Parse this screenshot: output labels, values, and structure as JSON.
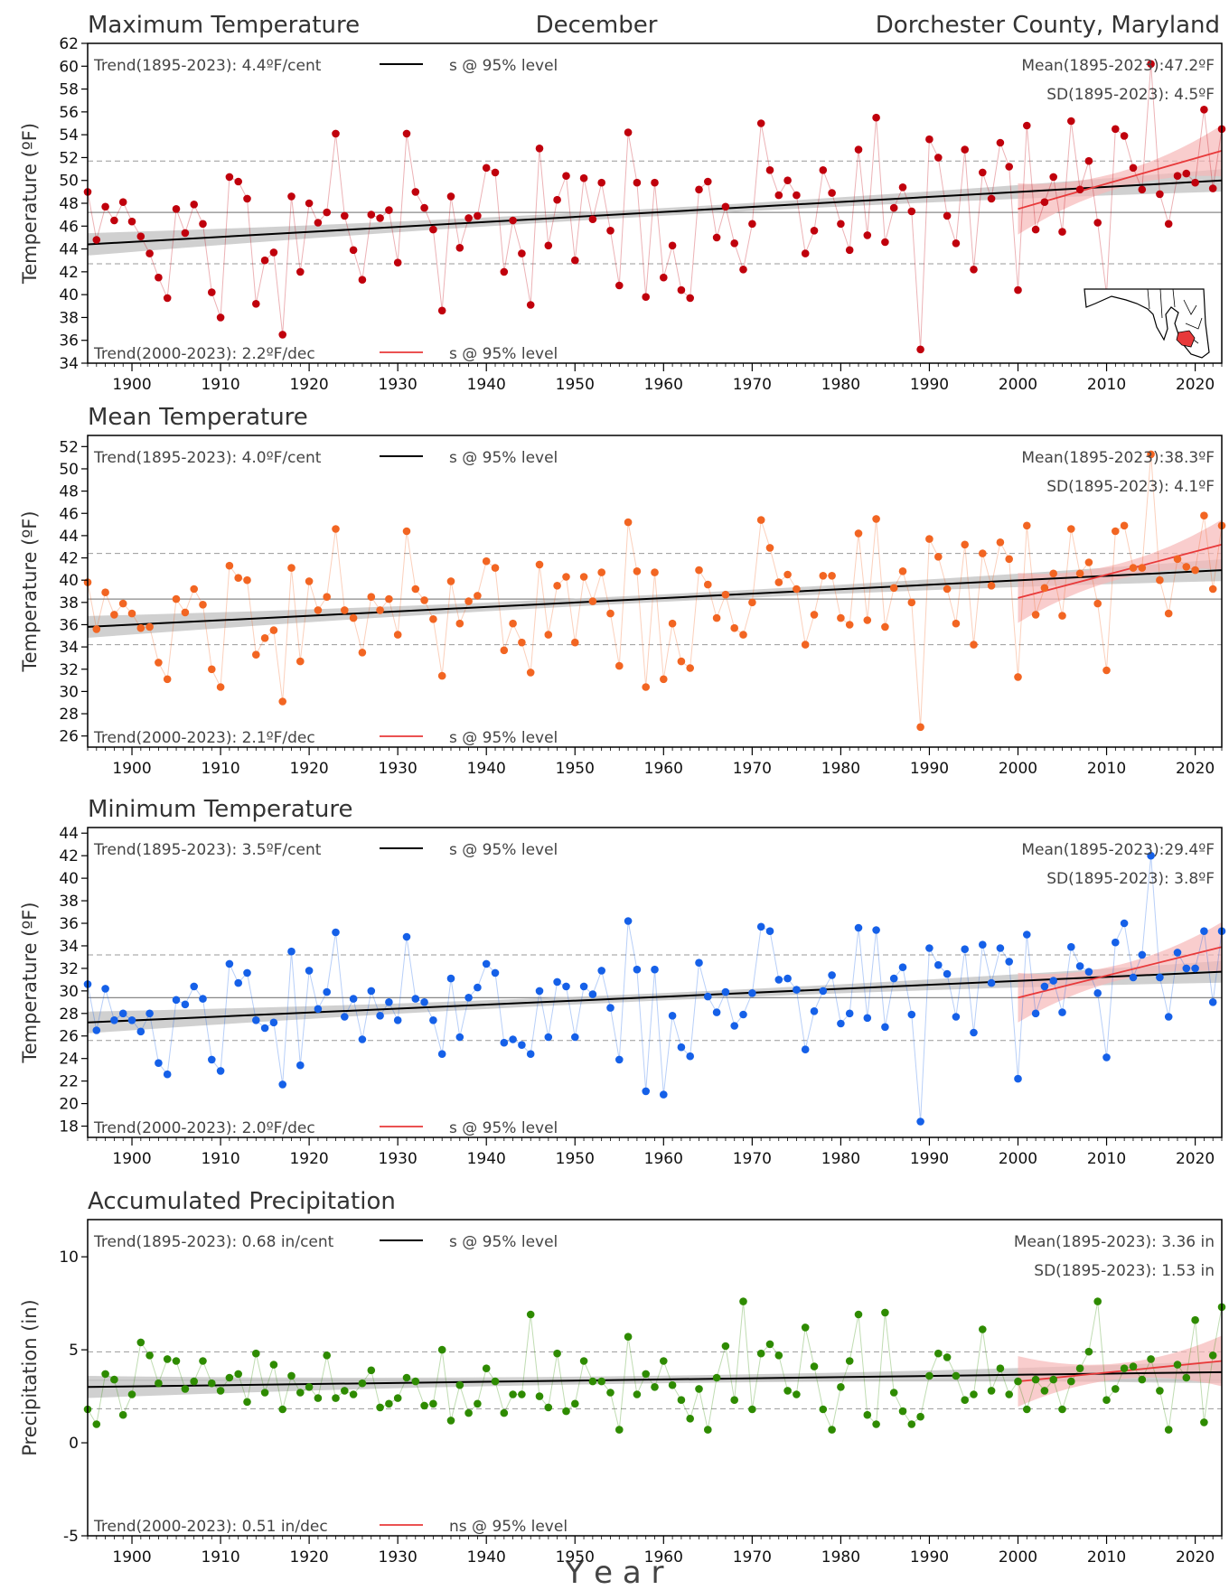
{
  "header": {
    "title_left": "Maximum Temperature",
    "title_center": "December",
    "title_right": "Dorchester County, Maryland"
  },
  "xaxis": {
    "label": "Y e a r",
    "range": [
      1895,
      2023
    ],
    "ticks": [
      1900,
      1910,
      1920,
      1930,
      1940,
      1950,
      1960,
      1970,
      1980,
      1990,
      2000,
      2010,
      2020
    ]
  },
  "map_icon": "maryland-county-locator-map",
  "colors": {
    "max": "#c0000c",
    "mean": "#f26522",
    "min": "#1560e8",
    "precip": "#2e8b00",
    "trend_long": "#000000",
    "trend_recent": "#e8393a",
    "band_long": "#c8c8c8",
    "band_recent": "#f7b8b8"
  },
  "chart_data": [
    {
      "type": "line",
      "id": "max",
      "title": "Maximum Temperature",
      "ylabel": "Temperature (ºF)",
      "ylim": [
        34,
        62
      ],
      "yticks": [
        34,
        36,
        38,
        40,
        42,
        44,
        46,
        48,
        50,
        52,
        54,
        56,
        58,
        60,
        62
      ],
      "trend_long_text": "Trend(1895-2023):  4.4ºF/cent",
      "trend_long_sig": "s @ 95% level",
      "trend_recent_text": "Trend(2000-2023):  2.2ºF/dec",
      "trend_recent_sig": "s @ 95% level",
      "mean_text": "Mean(1895-2023):47.2ºF",
      "sd_text": "SD(1895-2023): 4.5ºF",
      "mean": 47.2,
      "sd": 4.5,
      "trend_long_line": [
        [
          1895,
          44.4
        ],
        [
          2023,
          50.0
        ]
      ],
      "trend_recent_line": [
        [
          2000,
          47.5
        ],
        [
          2023,
          52.6
        ]
      ],
      "x": [
        1895,
        1896,
        1897,
        1898,
        1899,
        1900,
        1901,
        1902,
        1903,
        1904,
        1905,
        1906,
        1907,
        1908,
        1909,
        1910,
        1911,
        1912,
        1913,
        1914,
        1915,
        1916,
        1917,
        1918,
        1919,
        1920,
        1921,
        1922,
        1923,
        1924,
        1925,
        1926,
        1927,
        1928,
        1929,
        1930,
        1931,
        1932,
        1933,
        1934,
        1935,
        1936,
        1937,
        1938,
        1939,
        1940,
        1941,
        1942,
        1943,
        1944,
        1945,
        1946,
        1947,
        1948,
        1949,
        1950,
        1951,
        1952,
        1953,
        1954,
        1955,
        1956,
        1957,
        1958,
        1959,
        1960,
        1961,
        1962,
        1963,
        1964,
        1965,
        1966,
        1967,
        1968,
        1969,
        1970,
        1971,
        1972,
        1973,
        1974,
        1975,
        1976,
        1977,
        1978,
        1979,
        1980,
        1981,
        1982,
        1983,
        1984,
        1985,
        1986,
        1987,
        1988,
        1989,
        1990,
        1991,
        1992,
        1993,
        1994,
        1995,
        1996,
        1997,
        1998,
        1999,
        2000,
        2001,
        2002,
        2003,
        2004,
        2005,
        2006,
        2007,
        2008,
        2009,
        2010,
        2011,
        2012,
        2013,
        2014,
        2015,
        2016,
        2017,
        2018,
        2019,
        2020,
        2021,
        2022,
        2023
      ],
      "values": [
        49.0,
        44.8,
        47.7,
        46.5,
        48.1,
        46.4,
        45.1,
        43.6,
        41.5,
        39.7,
        47.5,
        45.4,
        47.9,
        46.2,
        40.2,
        38.0,
        50.3,
        49.9,
        48.4,
        39.2,
        43.0,
        43.7,
        36.5,
        48.6,
        42.0,
        48.0,
        46.3,
        47.2,
        54.1,
        46.9,
        43.9,
        41.3,
        47.0,
        46.7,
        47.4,
        42.8,
        54.1,
        49.0,
        47.6,
        45.7,
        38.6,
        48.6,
        44.1,
        46.7,
        46.9,
        51.1,
        50.7,
        42.0,
        46.5,
        43.6,
        39.1,
        52.8,
        44.3,
        48.3,
        50.4,
        43.0,
        50.2,
        46.6,
        49.8,
        45.6,
        40.8,
        54.2,
        49.8,
        39.8,
        49.8,
        41.5,
        44.3,
        40.4,
        39.7,
        49.2,
        49.9,
        45.0,
        47.7,
        44.5,
        42.2,
        46.2,
        55.0,
        50.9,
        48.7,
        50.0,
        48.7,
        43.6,
        45.6,
        50.9,
        48.9,
        46.2,
        43.9,
        52.7,
        45.2,
        55.5,
        44.6,
        47.6,
        49.4,
        47.3,
        35.2,
        53.6,
        52.0,
        46.9,
        44.5,
        52.7,
        42.2,
        50.7,
        48.4,
        53.3,
        51.2,
        40.4,
        54.8,
        45.7,
        48.1,
        50.3,
        45.5,
        55.2,
        49.2,
        51.7,
        46.3,
        40.0,
        54.5,
        53.9,
        51.1,
        49.2,
        60.2,
        48.8,
        46.2,
        50.4,
        50.6,
        49.8,
        56.2,
        49.3,
        54.5
      ]
    },
    {
      "type": "line",
      "id": "mean",
      "title": "Mean Temperature",
      "ylabel": "Temperature (ºF)",
      "ylim": [
        25,
        53
      ],
      "yticks": [
        26,
        28,
        30,
        32,
        34,
        36,
        38,
        40,
        42,
        44,
        46,
        48,
        50,
        52
      ],
      "trend_long_text": "Trend(1895-2023):  4.0ºF/cent",
      "trend_long_sig": "s @ 95% level",
      "trend_recent_text": "Trend(2000-2023):  2.1ºF/dec",
      "trend_recent_sig": "s @ 95% level",
      "mean_text": "Mean(1895-2023):38.3ºF",
      "sd_text": "SD(1895-2023): 4.1ºF",
      "mean": 38.3,
      "sd": 4.1,
      "trend_long_line": [
        [
          1895,
          35.8
        ],
        [
          2023,
          40.9
        ]
      ],
      "trend_recent_line": [
        [
          2000,
          38.4
        ],
        [
          2023,
          43.2
        ]
      ],
      "x": [
        1895,
        1896,
        1897,
        1898,
        1899,
        1900,
        1901,
        1902,
        1903,
        1904,
        1905,
        1906,
        1907,
        1908,
        1909,
        1910,
        1911,
        1912,
        1913,
        1914,
        1915,
        1916,
        1917,
        1918,
        1919,
        1920,
        1921,
        1922,
        1923,
        1924,
        1925,
        1926,
        1927,
        1928,
        1929,
        1930,
        1931,
        1932,
        1933,
        1934,
        1935,
        1936,
        1937,
        1938,
        1939,
        1940,
        1941,
        1942,
        1943,
        1944,
        1945,
        1946,
        1947,
        1948,
        1949,
        1950,
        1951,
        1952,
        1953,
        1954,
        1955,
        1956,
        1957,
        1958,
        1959,
        1960,
        1961,
        1962,
        1963,
        1964,
        1965,
        1966,
        1967,
        1968,
        1969,
        1970,
        1971,
        1972,
        1973,
        1974,
        1975,
        1976,
        1977,
        1978,
        1979,
        1980,
        1981,
        1982,
        1983,
        1984,
        1985,
        1986,
        1987,
        1988,
        1989,
        1990,
        1991,
        1992,
        1993,
        1994,
        1995,
        1996,
        1997,
        1998,
        1999,
        2000,
        2001,
        2002,
        2003,
        2004,
        2005,
        2006,
        2007,
        2008,
        2009,
        2010,
        2011,
        2012,
        2013,
        2014,
        2015,
        2016,
        2017,
        2018,
        2019,
        2020,
        2021,
        2022,
        2023
      ],
      "values": [
        39.8,
        35.6,
        38.9,
        36.9,
        37.9,
        37.0,
        35.7,
        35.8,
        32.6,
        31.1,
        38.3,
        37.1,
        39.2,
        37.8,
        32.0,
        30.4,
        41.3,
        40.2,
        40.0,
        33.3,
        34.8,
        35.5,
        29.1,
        41.1,
        32.7,
        39.9,
        37.3,
        38.5,
        44.6,
        37.3,
        36.6,
        33.5,
        38.5,
        37.3,
        38.3,
        35.1,
        44.4,
        39.2,
        38.2,
        36.5,
        31.4,
        39.9,
        36.1,
        38.1,
        38.6,
        41.7,
        41.1,
        33.7,
        36.1,
        34.4,
        31.7,
        41.4,
        35.1,
        39.5,
        40.3,
        34.4,
        40.3,
        38.1,
        40.7,
        37.0,
        32.3,
        45.2,
        40.8,
        30.4,
        40.7,
        31.1,
        36.1,
        32.7,
        32.1,
        40.9,
        39.6,
        36.6,
        38.7,
        35.7,
        35.1,
        38.0,
        45.4,
        42.9,
        39.8,
        40.5,
        39.2,
        34.2,
        36.9,
        40.4,
        40.4,
        36.6,
        36.0,
        44.2,
        36.4,
        45.5,
        35.8,
        39.3,
        40.8,
        38.0,
        26.8,
        43.7,
        42.1,
        39.2,
        36.1,
        43.2,
        34.2,
        42.4,
        39.5,
        43.4,
        41.9,
        31.3,
        44.9,
        36.9,
        39.3,
        40.6,
        36.8,
        44.6,
        40.6,
        41.6,
        37.9,
        31.9,
        44.4,
        44.9,
        41.1,
        41.1,
        51.3,
        40.0,
        37.0,
        41.9,
        41.2,
        40.9,
        45.8,
        39.2,
        44.9
      ]
    },
    {
      "type": "line",
      "id": "min",
      "title": "Minimum Temperature",
      "ylabel": "Temperature (ºF)",
      "ylim": [
        17,
        44.5
      ],
      "yticks": [
        18,
        20,
        22,
        24,
        26,
        28,
        30,
        32,
        34,
        36,
        38,
        40,
        42,
        44
      ],
      "trend_long_text": "Trend(1895-2023):  3.5ºF/cent",
      "trend_long_sig": "s @ 95% level",
      "trend_recent_text": "Trend(2000-2023):  2.0ºF/dec",
      "trend_recent_sig": "s @ 95% level",
      "mean_text": "Mean(1895-2023):29.4ºF",
      "sd_text": "SD(1895-2023): 3.8ºF",
      "mean": 29.4,
      "sd": 3.8,
      "trend_long_line": [
        [
          1895,
          27.2
        ],
        [
          2023,
          31.7
        ]
      ],
      "trend_recent_line": [
        [
          2000,
          29.4
        ],
        [
          2023,
          33.9
        ]
      ],
      "x": [
        1895,
        1896,
        1897,
        1898,
        1899,
        1900,
        1901,
        1902,
        1903,
        1904,
        1905,
        1906,
        1907,
        1908,
        1909,
        1910,
        1911,
        1912,
        1913,
        1914,
        1915,
        1916,
        1917,
        1918,
        1919,
        1920,
        1921,
        1922,
        1923,
        1924,
        1925,
        1926,
        1927,
        1928,
        1929,
        1930,
        1931,
        1932,
        1933,
        1934,
        1935,
        1936,
        1937,
        1938,
        1939,
        1940,
        1941,
        1942,
        1943,
        1944,
        1945,
        1946,
        1947,
        1948,
        1949,
        1950,
        1951,
        1952,
        1953,
        1954,
        1955,
        1956,
        1957,
        1958,
        1959,
        1960,
        1961,
        1962,
        1963,
        1964,
        1965,
        1966,
        1967,
        1968,
        1969,
        1970,
        1971,
        1972,
        1973,
        1974,
        1975,
        1976,
        1977,
        1978,
        1979,
        1980,
        1981,
        1982,
        1983,
        1984,
        1985,
        1986,
        1987,
        1988,
        1989,
        1990,
        1991,
        1992,
        1993,
        1994,
        1995,
        1996,
        1997,
        1998,
        1999,
        2000,
        2001,
        2002,
        2003,
        2004,
        2005,
        2006,
        2007,
        2008,
        2009,
        2010,
        2011,
        2012,
        2013,
        2014,
        2015,
        2016,
        2017,
        2018,
        2019,
        2020,
        2021,
        2022,
        2023
      ],
      "values": [
        30.6,
        26.5,
        30.2,
        27.4,
        28.0,
        27.4,
        26.4,
        28.0,
        23.6,
        22.6,
        29.2,
        28.8,
        30.4,
        29.3,
        23.9,
        22.9,
        32.4,
        30.7,
        31.6,
        27.4,
        26.7,
        27.2,
        21.7,
        33.5,
        23.4,
        31.8,
        28.4,
        29.9,
        35.2,
        27.7,
        29.3,
        25.7,
        30.0,
        27.8,
        29.0,
        27.4,
        34.8,
        29.3,
        29.0,
        27.4,
        24.4,
        31.1,
        25.9,
        29.4,
        30.3,
        32.4,
        31.6,
        25.4,
        25.7,
        25.2,
        24.4,
        30.0,
        25.9,
        30.8,
        30.4,
        25.9,
        30.4,
        29.7,
        31.8,
        28.5,
        23.9,
        36.2,
        31.9,
        21.1,
        31.9,
        20.8,
        27.8,
        25.0,
        24.2,
        32.5,
        29.5,
        28.1,
        29.9,
        26.9,
        27.9,
        29.8,
        35.7,
        35.3,
        31.0,
        31.1,
        30.1,
        24.8,
        28.2,
        30.0,
        31.4,
        27.1,
        28.0,
        35.6,
        27.6,
        35.4,
        26.8,
        31.1,
        32.1,
        27.9,
        18.4,
        33.8,
        32.3,
        31.5,
        27.7,
        33.7,
        26.3,
        34.1,
        30.7,
        33.8,
        32.6,
        22.2,
        35.0,
        28.0,
        30.4,
        30.9,
        28.1,
        33.9,
        32.2,
        31.7,
        29.8,
        24.1,
        34.3,
        36.0,
        31.2,
        33.2,
        42.0,
        31.2,
        27.7,
        33.4,
        32.0,
        32.0,
        35.3,
        29.0,
        35.3
      ]
    },
    {
      "type": "line",
      "id": "precip",
      "title": "Accumulated Precipitation",
      "ylabel": "Precipitation (in)",
      "ylim": [
        -5,
        12
      ],
      "yticks": [
        -5,
        0,
        5,
        10
      ],
      "trend_long_text": "Trend(1895-2023):  0.68 in/cent",
      "trend_long_sig": "s @ 95% level",
      "trend_recent_text": "Trend(2000-2023):  0.51 in/dec",
      "trend_recent_sig": "ns @ 95% level",
      "mean_text": "Mean(1895-2023): 3.36 in",
      "sd_text": "SD(1895-2023): 1.53 in",
      "mean": 3.36,
      "sd": 1.53,
      "trend_long_line": [
        [
          1895,
          3.0
        ],
        [
          2023,
          3.8
        ]
      ],
      "trend_recent_line": [
        [
          2000,
          3.3
        ],
        [
          2023,
          4.4
        ]
      ],
      "x": [
        1895,
        1896,
        1897,
        1898,
        1899,
        1900,
        1901,
        1902,
        1903,
        1904,
        1905,
        1906,
        1907,
        1908,
        1909,
        1910,
        1911,
        1912,
        1913,
        1914,
        1915,
        1916,
        1917,
        1918,
        1919,
        1920,
        1921,
        1922,
        1923,
        1924,
        1925,
        1926,
        1927,
        1928,
        1929,
        1930,
        1931,
        1932,
        1933,
        1934,
        1935,
        1936,
        1937,
        1938,
        1939,
        1940,
        1941,
        1942,
        1943,
        1944,
        1945,
        1946,
        1947,
        1948,
        1949,
        1950,
        1951,
        1952,
        1953,
        1954,
        1955,
        1956,
        1957,
        1958,
        1959,
        1960,
        1961,
        1962,
        1963,
        1964,
        1965,
        1966,
        1967,
        1968,
        1969,
        1970,
        1971,
        1972,
        1973,
        1974,
        1975,
        1976,
        1977,
        1978,
        1979,
        1980,
        1981,
        1982,
        1983,
        1984,
        1985,
        1986,
        1987,
        1988,
        1989,
        1990,
        1991,
        1992,
        1993,
        1994,
        1995,
        1996,
        1997,
        1998,
        1999,
        2000,
        2001,
        2002,
        2003,
        2004,
        2005,
        2006,
        2007,
        2008,
        2009,
        2010,
        2011,
        2012,
        2013,
        2014,
        2015,
        2016,
        2017,
        2018,
        2019,
        2020,
        2021,
        2022,
        2023
      ],
      "values": [
        1.8,
        1.0,
        3.7,
        3.4,
        1.5,
        2.6,
        5.4,
        4.7,
        3.2,
        4.5,
        4.4,
        2.9,
        3.3,
        4.4,
        3.2,
        2.8,
        3.5,
        3.7,
        2.2,
        4.8,
        2.7,
        4.2,
        1.8,
        3.6,
        2.7,
        3.0,
        2.4,
        4.7,
        2.4,
        2.8,
        2.6,
        3.2,
        3.9,
        1.9,
        2.1,
        2.4,
        3.5,
        3.3,
        2.0,
        2.1,
        5.0,
        1.2,
        3.1,
        1.6,
        2.1,
        4.0,
        3.3,
        1.6,
        2.6,
        2.6,
        6.9,
        2.5,
        1.9,
        4.8,
        1.7,
        2.1,
        4.4,
        3.3,
        3.3,
        2.7,
        0.7,
        5.7,
        2.6,
        3.7,
        3.0,
        4.4,
        3.1,
        2.3,
        1.3,
        2.9,
        0.7,
        3.5,
        5.2,
        2.3,
        7.6,
        1.8,
        4.8,
        5.3,
        4.7,
        2.8,
        2.6,
        6.2,
        4.1,
        1.8,
        0.7,
        3.0,
        4.4,
        6.9,
        1.5,
        1.0,
        7.0,
        2.7,
        1.7,
        1.0,
        1.4,
        3.6,
        4.8,
        4.6,
        3.6,
        2.3,
        2.6,
        6.1,
        2.8,
        4.0,
        2.6,
        3.3,
        1.8,
        3.4,
        2.8,
        3.4,
        1.8,
        3.3,
        4.0,
        4.9,
        7.6,
        2.3,
        2.9,
        4.0,
        4.1,
        3.4,
        4.5,
        2.8,
        0.7,
        4.2,
        3.5,
        6.6,
        1.1,
        4.7,
        7.3
      ]
    }
  ]
}
